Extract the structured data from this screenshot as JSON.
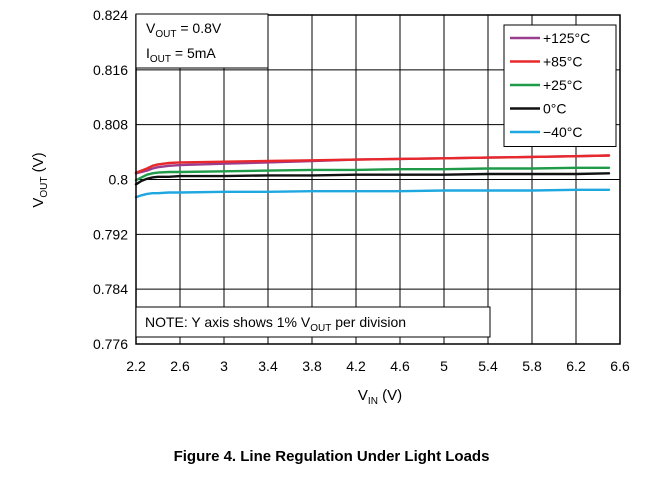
{
  "chart_data": {
    "type": "line",
    "xlabel": "V_IN (V)",
    "ylabel": "V_OUT (V)",
    "xlim": [
      2.2,
      6.6
    ],
    "ylim": [
      0.776,
      0.824
    ],
    "x_ticks": [
      2.2,
      2.6,
      3,
      3.4,
      3.8,
      4.2,
      4.6,
      5,
      5.4,
      5.8,
      6.2,
      6.6
    ],
    "x_tick_labels": [
      "2.2",
      "2.6",
      "3",
      "3.4",
      "3.8",
      "4.2",
      "4.6",
      "5",
      "5.4",
      "5.8",
      "6.2",
      "6.6"
    ],
    "y_ticks": [
      0.776,
      0.784,
      0.792,
      0.8,
      0.808,
      0.816,
      0.824
    ],
    "y_tick_labels": [
      "0.776",
      "0.784",
      "0.792",
      "0.8",
      "0.808",
      "0.816",
      "0.824"
    ],
    "grid": true,
    "legend_position": "top-right",
    "annotations": [
      "V_OUT = 0.8V",
      "I_OUT = 5mA",
      "NOTE: Y axis shows 1% V_OUT per division"
    ],
    "series": [
      {
        "name": "+125°C",
        "color": "#9b3d8f",
        "x": [
          2.2,
          2.25,
          2.3,
          2.35,
          2.4,
          2.5,
          2.6,
          3.0,
          3.4,
          3.8,
          4.2,
          4.6,
          5.0,
          5.4,
          5.8,
          6.2,
          6.5
        ],
        "y": [
          0.8009,
          0.8011,
          0.8013,
          0.8016,
          0.8018,
          0.802,
          0.8021,
          0.8023,
          0.8025,
          0.8027,
          0.8029,
          0.803,
          0.8031,
          0.8032,
          0.8033,
          0.8034,
          0.8035
        ]
      },
      {
        "name": "+85°C",
        "color": "#e8282b",
        "x": [
          2.2,
          2.25,
          2.3,
          2.35,
          2.4,
          2.5,
          2.6,
          3.0,
          3.4,
          3.8,
          4.2,
          4.6,
          5.0,
          5.4,
          5.8,
          6.2,
          6.5
        ],
        "y": [
          0.801,
          0.8013,
          0.8016,
          0.802,
          0.8022,
          0.8024,
          0.8025,
          0.8026,
          0.8027,
          0.8028,
          0.8029,
          0.803,
          0.8031,
          0.8032,
          0.8033,
          0.8034,
          0.8035
        ]
      },
      {
        "name": "+25°C",
        "color": "#1f9a48",
        "x": [
          2.2,
          2.25,
          2.3,
          2.35,
          2.4,
          2.5,
          2.6,
          3.0,
          3.4,
          3.8,
          4.2,
          4.6,
          5.0,
          5.4,
          5.8,
          6.2,
          6.5
        ],
        "y": [
          0.7999,
          0.8003,
          0.8007,
          0.8009,
          0.801,
          0.8011,
          0.8011,
          0.8012,
          0.8013,
          0.8014,
          0.8014,
          0.8015,
          0.8015,
          0.8016,
          0.8016,
          0.8017,
          0.8017
        ]
      },
      {
        "name": "0°C",
        "color": "#111111",
        "x": [
          2.2,
          2.25,
          2.3,
          2.35,
          2.4,
          2.5,
          2.6,
          3.0,
          3.4,
          3.8,
          4.2,
          4.6,
          5.0,
          5.4,
          5.8,
          6.2,
          6.5
        ],
        "y": [
          0.7993,
          0.7998,
          0.8001,
          0.8003,
          0.8004,
          0.8004,
          0.8005,
          0.8005,
          0.8006,
          0.8006,
          0.8007,
          0.8007,
          0.8007,
          0.8008,
          0.8008,
          0.8008,
          0.8009
        ]
      },
      {
        "name": "−40°C",
        "color": "#1fa8e0",
        "x": [
          2.2,
          2.25,
          2.3,
          2.35,
          2.4,
          2.5,
          2.6,
          3.0,
          3.4,
          3.8,
          4.2,
          4.6,
          5.0,
          5.4,
          5.8,
          6.2,
          6.5
        ],
        "y": [
          0.7974,
          0.7977,
          0.7979,
          0.798,
          0.798,
          0.7981,
          0.7981,
          0.7982,
          0.7982,
          0.7983,
          0.7983,
          0.7983,
          0.7984,
          0.7984,
          0.7984,
          0.7985,
          0.7985
        ]
      }
    ]
  },
  "text": {
    "ylabel_main": "V",
    "ylabel_sub": "OUT",
    "ylabel_unit": " (V)",
    "xlabel_main": "V",
    "xlabel_sub": "IN",
    "xlabel_unit": " (V)",
    "ann1_main": "V",
    "ann1_sub": "OUT",
    "ann1_rest": " = 0.8V",
    "ann2_main": "I",
    "ann2_sub": "OUT",
    "ann2_rest": " = 5mA",
    "note_pre": "NOTE: Y axis shows 1% V",
    "note_sub": "OUT",
    "note_post": " per division",
    "caption": "Figure 4. Line Regulation Under Light Loads"
  }
}
